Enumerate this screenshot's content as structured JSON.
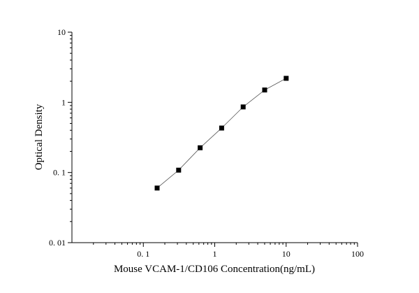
{
  "chart_data": {
    "type": "scatter",
    "xlabel": "Mouse VCAM-1/CD106 Concentration(ng/mL)",
    "ylabel": "Optical Density",
    "x_scale": "log",
    "y_scale": "log",
    "xlim": [
      0.01,
      100
    ],
    "ylim": [
      0.01,
      10
    ],
    "x_tick_values": [
      0.1,
      1,
      10,
      100
    ],
    "x_tick_labels": [
      "0. 1",
      "1",
      "10",
      "100"
    ],
    "y_tick_values": [
      0.01,
      0.1,
      1,
      10
    ],
    "y_tick_labels": [
      "0. 01",
      "0. 1",
      "1",
      "10"
    ],
    "grid": false,
    "legend": false,
    "series": [
      {
        "x": [
          0.156,
          0.312,
          0.625,
          1.25,
          2.5,
          5,
          10
        ],
        "y": [
          0.06,
          0.108,
          0.225,
          0.43,
          0.86,
          1.5,
          2.2
        ],
        "marker": "square",
        "connected": true,
        "color": "#000000"
      }
    ]
  }
}
